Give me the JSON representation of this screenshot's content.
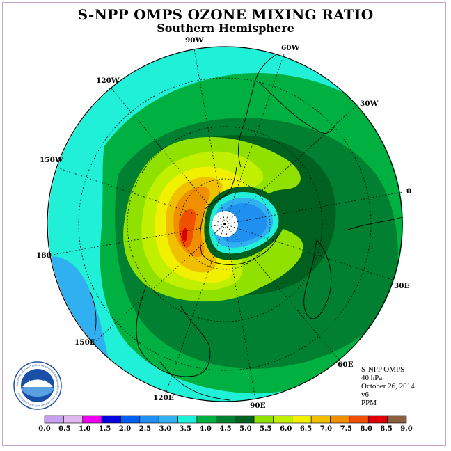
{
  "title": "S-NPP OMPS OZONE MIXING RATIO",
  "subtitle": "Southern Hemisphere",
  "logo_text": "NOAA",
  "logo_ring_text": "NATIONAL OCEANIC AND ATMOSPHERIC ADMINISTRATION - U.S. DEPARTMENT OF COMMERCE",
  "longitude_labels": [
    "90W",
    "60W",
    "30W",
    "0",
    "30E",
    "60E",
    "90E",
    "120E",
    "150E",
    "180",
    "150W",
    "120W"
  ],
  "info": {
    "instrument": "S-NPP OMPS",
    "level": "40 hPa",
    "date": "October 26, 2014",
    "version": "v6",
    "units": "PPM"
  },
  "legend": {
    "ticks": [
      "0.0",
      "0.5",
      "1.0",
      "1.5",
      "2.0",
      "2.5",
      "3.0",
      "3.5",
      "4.0",
      "4.5",
      "5.0",
      "5.5",
      "6.0",
      "6.5",
      "7.0",
      "7.5",
      "8.0",
      "8.5",
      "9.0"
    ],
    "colors": [
      "#c8a0f0",
      "#e0b8f0",
      "#f000f0",
      "#0000e0",
      "#0060f0",
      "#2090f0",
      "#30b0f0",
      "#20f0d8",
      "#00b040",
      "#008030",
      "#006020",
      "#90e000",
      "#c0f000",
      "#f0f000",
      "#f0c000",
      "#f09000",
      "#f05000",
      "#e00000",
      "#8a6040"
    ]
  },
  "colors": {
    "disk_background": "#20f0d8",
    "pole_no_data": "#ffffff",
    "coastline": "#000000",
    "frame": "#c9a0c9"
  }
}
